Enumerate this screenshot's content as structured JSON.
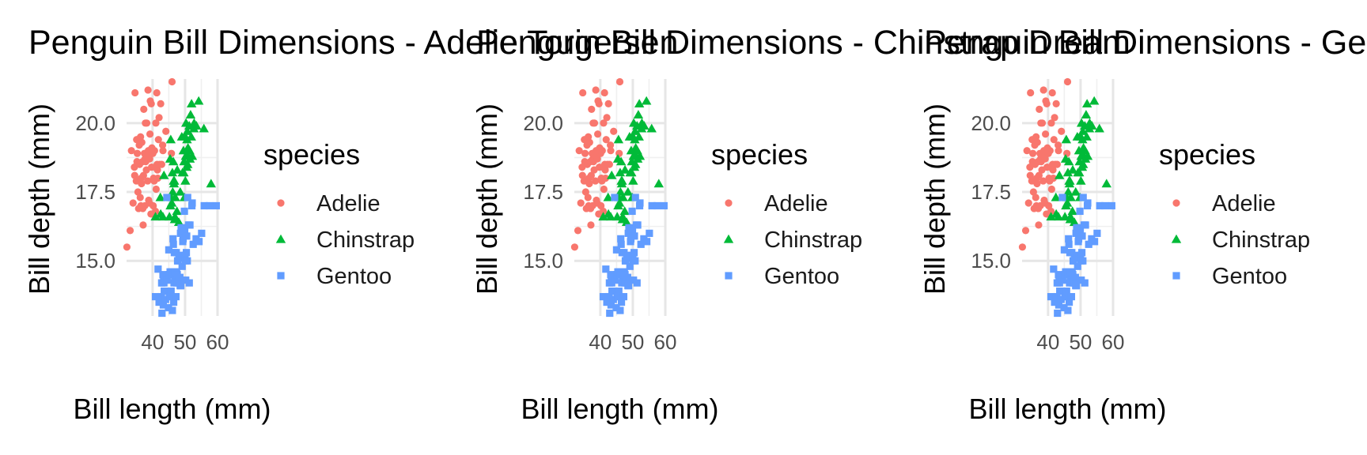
{
  "chart_data": [
    {
      "type": "scatter",
      "title": "Penguin Bill Dimensions - Adelie Torgersen",
      "xlabel": "Bill length (mm)",
      "ylabel": "Bill depth (mm)",
      "xlim": [
        32,
        60
      ],
      "ylim": [
        13.0,
        21.6
      ],
      "x_ticks": [
        40,
        50,
        60
      ],
      "y_ticks": [
        15.0,
        17.5,
        20.0
      ],
      "grid": true,
      "legend": {
        "title": "species",
        "placement": "right"
      },
      "series": [
        {
          "name": "Adelie",
          "color": "#F8766D",
          "marker": "circle",
          "points": [
            [
              32.1,
              15.5
            ],
            [
              33.1,
              16.1
            ],
            [
              33.5,
              19.0
            ],
            [
              34.0,
              17.1
            ],
            [
              34.4,
              18.4
            ],
            [
              34.5,
              18.1
            ],
            [
              34.6,
              21.1
            ],
            [
              35.0,
              17.9
            ],
            [
              35.1,
              19.4
            ],
            [
              35.3,
              18.9
            ],
            [
              35.5,
              17.5
            ],
            [
              35.7,
              16.9
            ],
            [
              35.9,
              19.2
            ],
            [
              36.0,
              18.5
            ],
            [
              36.2,
              17.3
            ],
            [
              36.4,
              17.0
            ],
            [
              36.5,
              18.0
            ],
            [
              36.7,
              19.3
            ],
            [
              36.9,
              18.6
            ],
            [
              37.0,
              16.9
            ],
            [
              37.2,
              18.1
            ],
            [
              37.3,
              20.5
            ],
            [
              37.6,
              17.0
            ],
            [
              37.7,
              18.7
            ],
            [
              37.8,
              20.0
            ],
            [
              37.9,
              18.6
            ],
            [
              38.1,
              18.3
            ],
            [
              38.2,
              20.0
            ],
            [
              38.5,
              17.9
            ],
            [
              38.6,
              21.2
            ],
            [
              38.8,
              17.2
            ],
            [
              39.0,
              17.1
            ],
            [
              39.1,
              18.7
            ],
            [
              39.2,
              19.6
            ],
            [
              39.5,
              16.7
            ],
            [
              39.6,
              20.7
            ],
            [
              39.7,
              18.4
            ],
            [
              40.0,
              18.9
            ],
            [
              40.2,
              17.0
            ],
            [
              40.3,
              18.0
            ],
            [
              40.5,
              17.9
            ],
            [
              40.6,
              19.0
            ],
            [
              40.8,
              18.4
            ],
            [
              41.0,
              20.0
            ],
            [
              41.1,
              17.6
            ],
            [
              41.3,
              21.1
            ],
            [
              41.5,
              18.3
            ],
            [
              41.8,
              19.4
            ],
            [
              42.0,
              20.2
            ],
            [
              42.2,
              18.5
            ],
            [
              42.5,
              20.7
            ],
            [
              42.8,
              18.5
            ],
            [
              43.1,
              19.2
            ],
            [
              43.2,
              19.0
            ],
            [
              44.1,
              19.7
            ],
            [
              45.8,
              18.9
            ],
            [
              46.0,
              21.5
            ],
            [
              36.6,
              17.8
            ],
            [
              37.5,
              18.9
            ],
            [
              38.9,
              18.8
            ],
            [
              40.1,
              18.9
            ],
            [
              41.4,
              18.5
            ],
            [
              38.7,
              19.0
            ],
            [
              36.3,
              19.5
            ],
            [
              35.2,
              18.6
            ],
            [
              39.8,
              19.1
            ],
            [
              41.6,
              18.0
            ],
            [
              40.9,
              16.8
            ],
            [
              37.1,
              16.3
            ],
            [
              39.3,
              20.8
            ]
          ]
        },
        {
          "name": "Chinstrap",
          "color": "#00BA38",
          "marker": "triangle",
          "points": [
            [
              40.9,
              16.6
            ],
            [
              42.4,
              17.3
            ],
            [
              42.5,
              16.7
            ],
            [
              43.2,
              16.6
            ],
            [
              43.5,
              18.1
            ],
            [
              45.2,
              16.6
            ],
            [
              45.4,
              18.7
            ],
            [
              45.5,
              17.0
            ],
            [
              45.6,
              19.4
            ],
            [
              45.7,
              17.3
            ],
            [
              45.9,
              17.1
            ],
            [
              46.1,
              18.2
            ],
            [
              46.2,
              17.5
            ],
            [
              46.4,
              18.6
            ],
            [
              46.5,
              17.9
            ],
            [
              46.6,
              17.8
            ],
            [
              46.7,
              17.9
            ],
            [
              46.8,
              16.5
            ],
            [
              46.9,
              16.6
            ],
            [
              47.0,
              17.3
            ],
            [
              47.5,
              16.8
            ],
            [
              47.6,
              18.3
            ],
            [
              48.1,
              16.4
            ],
            [
              48.5,
              17.5
            ],
            [
              49.0,
              19.5
            ],
            [
              49.2,
              18.2
            ],
            [
              49.5,
              19.0
            ],
            [
              49.6,
              18.2
            ],
            [
              49.7,
              18.6
            ],
            [
              49.8,
              17.3
            ],
            [
              50.0,
              19.5
            ],
            [
              50.1,
              17.9
            ],
            [
              50.2,
              18.8
            ],
            [
              50.3,
              20.0
            ],
            [
              50.5,
              18.4
            ],
            [
              50.6,
              19.4
            ],
            [
              50.7,
              19.7
            ],
            [
              50.8,
              18.5
            ],
            [
              50.9,
              19.1
            ],
            [
              51.0,
              18.8
            ],
            [
              51.3,
              19.9
            ],
            [
              51.4,
              19.0
            ],
            [
              51.5,
              18.7
            ],
            [
              51.7,
              20.3
            ],
            [
              51.9,
              19.5
            ],
            [
              52.0,
              20.7
            ],
            [
              52.2,
              18.8
            ],
            [
              52.7,
              19.8
            ],
            [
              52.8,
              20.0
            ],
            [
              53.5,
              19.9
            ],
            [
              54.2,
              20.8
            ],
            [
              55.8,
              19.8
            ],
            [
              58.0,
              17.8
            ]
          ]
        },
        {
          "name": "Gentoo",
          "color": "#619CFF",
          "marker": "square",
          "points": [
            [
              40.9,
              13.7
            ],
            [
              41.7,
              14.7
            ],
            [
              42.0,
              13.5
            ],
            [
              42.6,
              13.7
            ],
            [
              42.7,
              13.7
            ],
            [
              42.8,
              14.2
            ],
            [
              42.9,
              13.1
            ],
            [
              43.2,
              14.5
            ],
            [
              43.3,
              13.4
            ],
            [
              43.4,
              14.4
            ],
            [
              43.5,
              14.2
            ],
            [
              43.6,
              13.9
            ],
            [
              43.8,
              13.9
            ],
            [
              44.0,
              13.6
            ],
            [
              44.4,
              17.3
            ],
            [
              44.5,
              14.3
            ],
            [
              44.9,
              13.3
            ],
            [
              45.0,
              15.4
            ],
            [
              45.1,
              14.5
            ],
            [
              45.2,
              13.8
            ],
            [
              45.3,
              13.7
            ],
            [
              45.4,
              14.6
            ],
            [
              45.5,
              13.7
            ],
            [
              45.7,
              13.9
            ],
            [
              45.8,
              14.6
            ],
            [
              46.1,
              13.2
            ],
            [
              46.2,
              14.5
            ],
            [
              46.3,
              15.8
            ],
            [
              46.4,
              15.6
            ],
            [
              46.5,
              13.5
            ],
            [
              46.6,
              14.2
            ],
            [
              46.7,
              15.3
            ],
            [
              46.8,
              14.3
            ],
            [
              46.9,
              14.6
            ],
            [
              47.2,
              13.7
            ],
            [
              47.3,
              15.3
            ],
            [
              47.4,
              14.6
            ],
            [
              47.5,
              14.2
            ],
            [
              47.6,
              14.5
            ],
            [
              47.7,
              15.0
            ],
            [
              47.8,
              15.0
            ],
            [
              48.1,
              15.1
            ],
            [
              48.2,
              14.3
            ],
            [
              48.4,
              14.4
            ],
            [
              48.5,
              14.1
            ],
            [
              48.6,
              16.0
            ],
            [
              48.7,
              14.1
            ],
            [
              48.8,
              16.2
            ],
            [
              49.0,
              16.1
            ],
            [
              49.1,
              14.8
            ],
            [
              49.2,
              15.2
            ],
            [
              49.3,
              15.7
            ],
            [
              49.4,
              15.8
            ],
            [
              49.5,
              16.2
            ],
            [
              49.6,
              16.0
            ],
            [
              49.8,
              16.8
            ],
            [
              49.9,
              16.1
            ],
            [
              50.0,
              15.2
            ],
            [
              50.1,
              15.0
            ],
            [
              50.2,
              14.3
            ],
            [
              50.4,
              15.3
            ],
            [
              50.5,
              15.9
            ],
            [
              50.7,
              15.0
            ],
            [
              50.8,
              17.3
            ],
            [
              51.1,
              16.3
            ],
            [
              51.3,
              14.2
            ],
            [
              51.5,
              16.3
            ],
            [
              52.1,
              17.0
            ],
            [
              52.2,
              17.1
            ],
            [
              52.5,
              15.6
            ],
            [
              53.4,
              15.8
            ],
            [
              54.3,
              15.7
            ],
            [
              55.1,
              16.0
            ],
            [
              55.9,
              17.0
            ],
            [
              59.6,
              17.0
            ],
            [
              57.5,
              17.0
            ]
          ]
        }
      ]
    },
    {
      "type": "scatter",
      "title": "Penguin Bill Dimensions - Chinstrap Dream",
      "xlabel": "Bill length (mm)",
      "ylabel": "Bill depth (mm)",
      "xlim": [
        32,
        60
      ],
      "ylim": [
        13.0,
        21.6
      ],
      "x_ticks": [
        40,
        50,
        60
      ],
      "y_ticks": [
        15.0,
        17.5,
        20.0
      ],
      "grid": true,
      "legend": {
        "title": "species",
        "placement": "right"
      },
      "series_ref": 0
    },
    {
      "type": "scatter",
      "title": "Penguin Bill Dimensions - Gentoo Biscoe",
      "xlabel": "Bill length (mm)",
      "ylabel": "Bill depth (mm)",
      "xlim": [
        32,
        60
      ],
      "ylim": [
        13.0,
        21.6
      ],
      "x_ticks": [
        40,
        50,
        60
      ],
      "y_ticks": [
        15.0,
        17.5,
        20.0
      ],
      "grid": true,
      "legend": {
        "title": "species",
        "placement": "right"
      },
      "series_ref": 0
    }
  ]
}
